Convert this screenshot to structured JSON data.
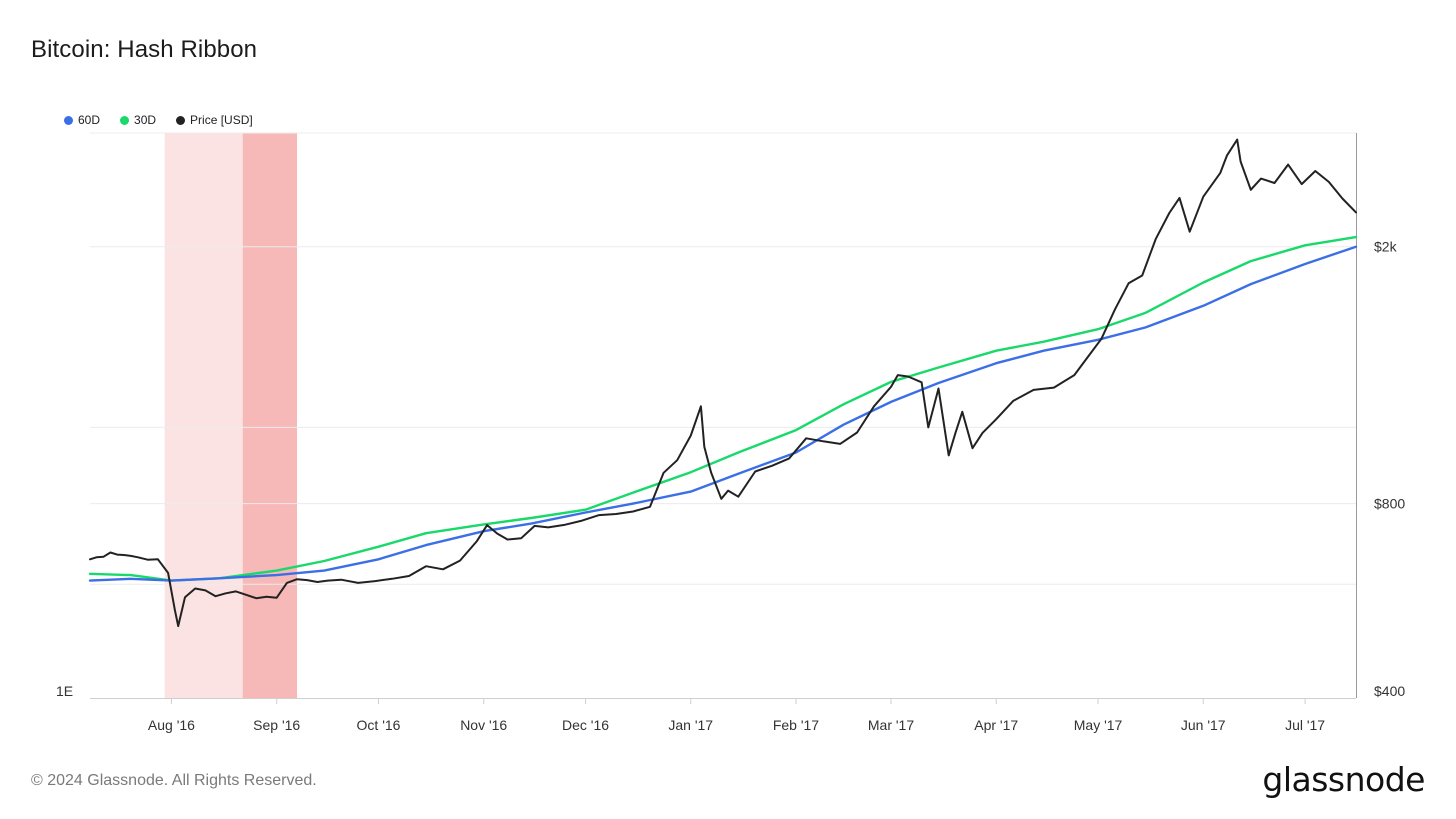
{
  "page": {
    "title": "Bitcoin: Hash Ribbon",
    "footer": "© 2024 Glassnode. All Rights Reserved.",
    "brand": "glassnode"
  },
  "legend": [
    {
      "name": "60D",
      "color": "#3b6fe6"
    },
    {
      "name": "30D",
      "color": "#18d96a"
    },
    {
      "name": "Price [USD]",
      "color": "#222222"
    }
  ],
  "chart_data": {
    "type": "line",
    "title": "Bitcoin: Hash Ribbon",
    "xlabel": "",
    "ylabel": "",
    "x_ticks": [
      "Aug '16",
      "Sep '16",
      "Oct '16",
      "Nov '16",
      "Dec '16",
      "Jan '17",
      "Feb '17",
      "Mar '17",
      "Apr '17",
      "May '17",
      "Jun '17",
      "Jul '17"
    ],
    "x_range": [
      "2016-07-08",
      "2017-07-16"
    ],
    "y_right": {
      "scale": "log",
      "range": [
        400,
        3000
      ],
      "ticks": [
        {
          "value": 400,
          "label": "$400"
        },
        {
          "value": 800,
          "label": "$800"
        },
        {
          "value": 2000,
          "label": "$2k"
        }
      ]
    },
    "y_left": {
      "scale": "log",
      "tick_label": "1E"
    },
    "shaded_regions": [
      {
        "start": "2016-07-30",
        "end": "2016-08-22",
        "color": "#fbe3e3"
      },
      {
        "start": "2016-08-22",
        "end": "2016-09-07",
        "color": "#f7b8b8"
      }
    ],
    "series": [
      {
        "name": "Price [USD]",
        "color": "#222222",
        "x": [
          "2016-07-08",
          "2016-07-10",
          "2016-07-12",
          "2016-07-14",
          "2016-07-16",
          "2016-07-18",
          "2016-07-20",
          "2016-07-22",
          "2016-07-25",
          "2016-07-28",
          "2016-07-31",
          "2016-08-02",
          "2016-08-03",
          "2016-08-05",
          "2016-08-08",
          "2016-08-11",
          "2016-08-14",
          "2016-08-17",
          "2016-08-20",
          "2016-08-23",
          "2016-08-26",
          "2016-08-29",
          "2016-09-01",
          "2016-09-04",
          "2016-09-07",
          "2016-09-10",
          "2016-09-13",
          "2016-09-16",
          "2016-09-20",
          "2016-09-25",
          "2016-09-30",
          "2016-10-05",
          "2016-10-10",
          "2016-10-15",
          "2016-10-20",
          "2016-10-25",
          "2016-10-30",
          "2016-11-02",
          "2016-11-05",
          "2016-11-08",
          "2016-11-12",
          "2016-11-16",
          "2016-11-20",
          "2016-11-25",
          "2016-11-30",
          "2016-12-05",
          "2016-12-10",
          "2016-12-15",
          "2016-12-20",
          "2016-12-24",
          "2016-12-28",
          "2017-01-01",
          "2017-01-04",
          "2017-01-05",
          "2017-01-07",
          "2017-01-10",
          "2017-01-12",
          "2017-01-15",
          "2017-01-20",
          "2017-01-25",
          "2017-01-30",
          "2017-02-04",
          "2017-02-09",
          "2017-02-14",
          "2017-02-19",
          "2017-02-24",
          "2017-03-01",
          "2017-03-03",
          "2017-03-06",
          "2017-03-10",
          "2017-03-12",
          "2017-03-15",
          "2017-03-18",
          "2017-03-20",
          "2017-03-22",
          "2017-03-25",
          "2017-03-28",
          "2017-04-01",
          "2017-04-06",
          "2017-04-12",
          "2017-04-18",
          "2017-04-24",
          "2017-04-28",
          "2017-05-02",
          "2017-05-06",
          "2017-05-10",
          "2017-05-14",
          "2017-05-18",
          "2017-05-22",
          "2017-05-25",
          "2017-05-28",
          "2017-06-01",
          "2017-06-06",
          "2017-06-08",
          "2017-06-11",
          "2017-06-12",
          "2017-06-15",
          "2017-06-18",
          "2017-06-22",
          "2017-06-26",
          "2017-06-30",
          "2017-07-04",
          "2017-07-08",
          "2017-07-12",
          "2017-07-16"
        ],
        "values": [
          656,
          661,
          662,
          672,
          667,
          666,
          664,
          661,
          655,
          656,
          625,
          547,
          517,
          573,
          591,
          587,
          575,
          581,
          585,
          578,
          571,
          574,
          572,
          603,
          611,
          609,
          605,
          608,
          610,
          603,
          607,
          612,
          618,
          640,
          633,
          653,
          700,
          741,
          719,
          704,
          707,
          739,
          735,
          742,
          753,
          768,
          771,
          778,
          791,
          893,
          934,
          1020,
          1132,
          980,
          894,
          814,
          838,
          820,
          897,
          916,
          940,
          1010,
          999,
          990,
          1031,
          1132,
          1213,
          1265,
          1259,
          1233,
          1050,
          1206,
          950,
          1030,
          1110,
          975,
          1030,
          1081,
          1154,
          1200,
          1210,
          1265,
          1350,
          1440,
          1600,
          1755,
          1805,
          2055,
          2255,
          2380,
          2110,
          2390,
          2600,
          2770,
          2930,
          2710,
          2450,
          2550,
          2510,
          2680,
          2500,
          2620,
          2520,
          2375,
          2260
        ]
      },
      {
        "name": "30D",
        "color": "#18d96a",
        "x": [
          "2016-07-08",
          "2016-07-20",
          "2016-08-01",
          "2016-08-15",
          "2016-09-01",
          "2016-09-15",
          "2016-10-01",
          "2016-10-15",
          "2016-11-01",
          "2016-11-15",
          "2016-12-01",
          "2016-12-15",
          "2017-01-01",
          "2017-01-15",
          "2017-02-01",
          "2017-02-15",
          "2017-03-01",
          "2017-03-15",
          "2017-04-01",
          "2017-04-15",
          "2017-05-01",
          "2017-05-15",
          "2017-06-01",
          "2017-06-15",
          "2017-07-01",
          "2017-07-16"
        ],
        "values": [
          623,
          620,
          608,
          613,
          630,
          652,
          686,
          720,
          743,
          760,
          783,
          832,
          895,
          960,
          1040,
          1140,
          1235,
          1300,
          1380,
          1425,
          1490,
          1580,
          1760,
          1900,
          2010,
          2070
        ]
      },
      {
        "name": "60D",
        "color": "#3b6fe6",
        "x": [
          "2016-07-08",
          "2016-07-20",
          "2016-08-01",
          "2016-08-15",
          "2016-09-01",
          "2016-09-15",
          "2016-10-01",
          "2016-10-15",
          "2016-11-01",
          "2016-11-15",
          "2016-12-01",
          "2016-12-15",
          "2017-01-01",
          "2017-01-15",
          "2017-02-01",
          "2017-02-15",
          "2017-03-01",
          "2017-03-15",
          "2017-04-01",
          "2017-04-15",
          "2017-05-01",
          "2017-05-15",
          "2017-06-01",
          "2017-06-15",
          "2017-07-01",
          "2017-07-16"
        ],
        "values": [
          608,
          612,
          608,
          613,
          620,
          630,
          656,
          690,
          725,
          745,
          775,
          800,
          835,
          890,
          960,
          1060,
          1150,
          1230,
          1320,
          1380,
          1435,
          1500,
          1620,
          1750,
          1880,
          2000
        ]
      }
    ]
  }
}
